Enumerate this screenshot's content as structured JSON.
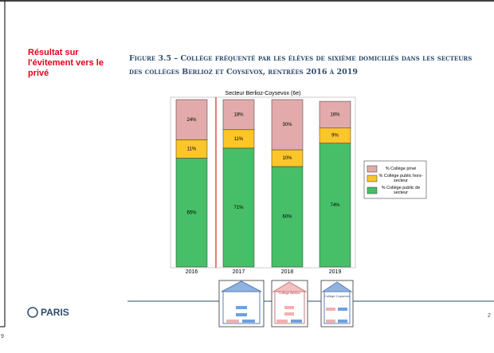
{
  "slide": {
    "side_note": "Résultat sur l'évitement vers le privé",
    "figure_title": "Figure 3.5 – Collège fréquenté par les élèves de sixième domiciliés dans les secteurs des collèges Berlioz et Coysevox, rentrées 2016 à 2019",
    "logo": "PARIS",
    "page_number": "2",
    "left_number": "9",
    "icons": [
      "Collège Coysevox",
      "Collège Berlioz",
      "Collège Coysevox"
    ]
  },
  "chart_data": {
    "type": "stacked-bar",
    "title": "Secteur Berlioz-Coysevox (6e)",
    "categories": [
      "2016",
      "2017",
      "2018",
      "2019"
    ],
    "ylim": [
      0,
      100
    ],
    "series": [
      {
        "name": "% Collège privé",
        "color": "#e2aaaa",
        "values": [
          24,
          18,
          30,
          16
        ],
        "value_labels": [
          "24%",
          "18%",
          "30%",
          "16%"
        ]
      },
      {
        "name": "% Collège public hors-secteur",
        "color": "#fcc52a",
        "values": [
          11,
          11,
          10,
          9
        ],
        "value_labels": [
          "11%",
          "11%",
          "10%",
          "9%"
        ]
      },
      {
        "name": "% Collège public de secteur",
        "color": "#46bf68",
        "values": [
          65,
          71,
          60,
          74
        ],
        "value_labels": [
          "65%",
          "71%",
          "60%",
          "74%"
        ]
      }
    ]
  }
}
